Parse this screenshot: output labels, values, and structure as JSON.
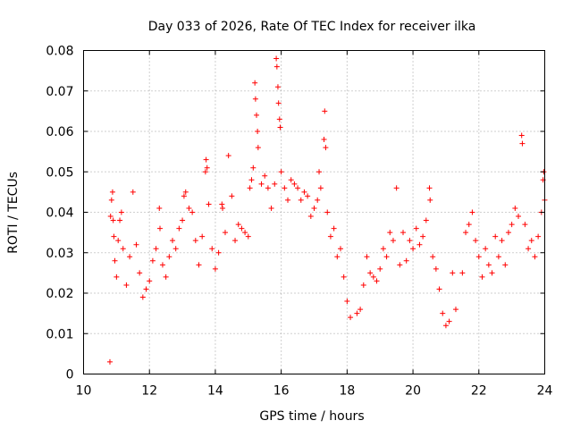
{
  "chart_data": {
    "type": "scatter",
    "title": "Day 033 of 2026, Rate Of TEC Index for receiver ilka",
    "xlabel": "GPS time / hours",
    "ylabel": "ROTI / TECUs",
    "xlim": [
      10,
      24
    ],
    "ylim": [
      0,
      0.08
    ],
    "xticks": [
      10,
      12,
      14,
      16,
      18,
      20,
      22,
      24
    ],
    "xtick_labels": [
      "10",
      "12",
      "14",
      "16",
      "18",
      "20",
      "22",
      "24"
    ],
    "yticks": [
      0,
      0.01,
      0.02,
      0.03,
      0.04,
      0.05,
      0.06,
      0.07,
      0.08
    ],
    "ytick_labels": [
      "0",
      "0.01",
      "0.02",
      "0.03",
      "0.04",
      "0.05",
      "0.06",
      "0.07",
      "0.08"
    ],
    "grid": true,
    "marker": "+",
    "marker_color": "#ff0000",
    "series": [
      {
        "name": "ROTI",
        "points": [
          [
            10.8,
            0.003
          ],
          [
            10.82,
            0.039
          ],
          [
            10.85,
            0.043
          ],
          [
            10.88,
            0.045
          ],
          [
            10.9,
            0.038
          ],
          [
            10.92,
            0.034
          ],
          [
            10.95,
            0.028
          ],
          [
            11.0,
            0.024
          ],
          [
            11.05,
            0.033
          ],
          [
            11.1,
            0.038
          ],
          [
            11.15,
            0.04
          ],
          [
            11.2,
            0.031
          ],
          [
            11.3,
            0.022
          ],
          [
            11.4,
            0.029
          ],
          [
            11.5,
            0.045
          ],
          [
            11.6,
            0.032
          ],
          [
            11.7,
            0.025
          ],
          [
            11.8,
            0.019
          ],
          [
            11.9,
            0.021
          ],
          [
            12.0,
            0.023
          ],
          [
            12.1,
            0.028
          ],
          [
            12.2,
            0.031
          ],
          [
            12.3,
            0.041
          ],
          [
            12.32,
            0.036
          ],
          [
            12.4,
            0.027
          ],
          [
            12.5,
            0.024
          ],
          [
            12.6,
            0.029
          ],
          [
            12.7,
            0.033
          ],
          [
            12.8,
            0.031
          ],
          [
            12.9,
            0.036
          ],
          [
            13.0,
            0.038
          ],
          [
            13.05,
            0.044
          ],
          [
            13.1,
            0.045
          ],
          [
            13.2,
            0.041
          ],
          [
            13.3,
            0.04
          ],
          [
            13.4,
            0.033
          ],
          [
            13.5,
            0.027
          ],
          [
            13.6,
            0.034
          ],
          [
            13.7,
            0.05
          ],
          [
            13.72,
            0.053
          ],
          [
            13.75,
            0.051
          ],
          [
            13.8,
            0.042
          ],
          [
            13.9,
            0.031
          ],
          [
            14.0,
            0.026
          ],
          [
            14.1,
            0.03
          ],
          [
            14.2,
            0.042
          ],
          [
            14.22,
            0.041
          ],
          [
            14.3,
            0.035
          ],
          [
            14.4,
            0.054
          ],
          [
            14.5,
            0.044
          ],
          [
            14.6,
            0.033
          ],
          [
            14.7,
            0.037
          ],
          [
            14.8,
            0.036
          ],
          [
            14.9,
            0.035
          ],
          [
            15.0,
            0.034
          ],
          [
            15.05,
            0.046
          ],
          [
            15.1,
            0.048
          ],
          [
            15.15,
            0.051
          ],
          [
            15.2,
            0.072
          ],
          [
            15.22,
            0.068
          ],
          [
            15.25,
            0.064
          ],
          [
            15.28,
            0.06
          ],
          [
            15.3,
            0.056
          ],
          [
            15.4,
            0.047
          ],
          [
            15.5,
            0.049
          ],
          [
            15.6,
            0.046
          ],
          [
            15.7,
            0.041
          ],
          [
            15.8,
            0.047
          ],
          [
            15.85,
            0.078
          ],
          [
            15.87,
            0.076
          ],
          [
            15.9,
            0.071
          ],
          [
            15.92,
            0.067
          ],
          [
            15.95,
            0.063
          ],
          [
            15.97,
            0.061
          ],
          [
            16.0,
            0.05
          ],
          [
            16.1,
            0.046
          ],
          [
            16.2,
            0.043
          ],
          [
            16.3,
            0.048
          ],
          [
            16.4,
            0.047
          ],
          [
            16.5,
            0.046
          ],
          [
            16.6,
            0.043
          ],
          [
            16.7,
            0.045
          ],
          [
            16.8,
            0.044
          ],
          [
            16.9,
            0.039
          ],
          [
            17.0,
            0.041
          ],
          [
            17.1,
            0.043
          ],
          [
            17.15,
            0.05
          ],
          [
            17.2,
            0.046
          ],
          [
            17.3,
            0.058
          ],
          [
            17.32,
            0.065
          ],
          [
            17.35,
            0.056
          ],
          [
            17.4,
            0.04
          ],
          [
            17.5,
            0.034
          ],
          [
            17.6,
            0.036
          ],
          [
            17.7,
            0.029
          ],
          [
            17.8,
            0.031
          ],
          [
            17.9,
            0.024
          ],
          [
            18.0,
            0.018
          ],
          [
            18.1,
            0.014
          ],
          [
            18.3,
            0.015
          ],
          [
            18.4,
            0.016
          ],
          [
            18.5,
            0.022
          ],
          [
            18.6,
            0.029
          ],
          [
            18.7,
            0.025
          ],
          [
            18.8,
            0.024
          ],
          [
            18.9,
            0.023
          ],
          [
            19.0,
            0.026
          ],
          [
            19.1,
            0.031
          ],
          [
            19.2,
            0.029
          ],
          [
            19.3,
            0.035
          ],
          [
            19.4,
            0.033
          ],
          [
            19.5,
            0.046
          ],
          [
            19.6,
            0.027
          ],
          [
            19.7,
            0.035
          ],
          [
            19.8,
            0.028
          ],
          [
            19.9,
            0.033
          ],
          [
            20.0,
            0.031
          ],
          [
            20.1,
            0.036
          ],
          [
            20.2,
            0.032
          ],
          [
            20.3,
            0.034
          ],
          [
            20.4,
            0.038
          ],
          [
            20.5,
            0.046
          ],
          [
            20.52,
            0.043
          ],
          [
            20.6,
            0.029
          ],
          [
            20.7,
            0.026
          ],
          [
            20.8,
            0.021
          ],
          [
            20.9,
            0.015
          ],
          [
            21.0,
            0.012
          ],
          [
            21.1,
            0.013
          ],
          [
            21.2,
            0.025
          ],
          [
            21.3,
            0.016
          ],
          [
            21.5,
            0.025
          ],
          [
            21.6,
            0.035
          ],
          [
            21.7,
            0.037
          ],
          [
            21.8,
            0.04
          ],
          [
            21.9,
            0.033
          ],
          [
            22.0,
            0.029
          ],
          [
            22.1,
            0.024
          ],
          [
            22.2,
            0.031
          ],
          [
            22.3,
            0.027
          ],
          [
            22.4,
            0.025
          ],
          [
            22.5,
            0.034
          ],
          [
            22.6,
            0.029
          ],
          [
            22.7,
            0.033
          ],
          [
            22.8,
            0.027
          ],
          [
            22.9,
            0.035
          ],
          [
            23.0,
            0.037
          ],
          [
            23.1,
            0.041
          ],
          [
            23.2,
            0.039
          ],
          [
            23.3,
            0.059
          ],
          [
            23.32,
            0.057
          ],
          [
            23.4,
            0.037
          ],
          [
            23.5,
            0.031
          ],
          [
            23.6,
            0.033
          ],
          [
            23.7,
            0.029
          ],
          [
            23.8,
            0.034
          ],
          [
            23.9,
            0.04
          ],
          [
            23.95,
            0.048
          ],
          [
            23.97,
            0.05
          ],
          [
            24.0,
            0.043
          ]
        ]
      }
    ]
  }
}
